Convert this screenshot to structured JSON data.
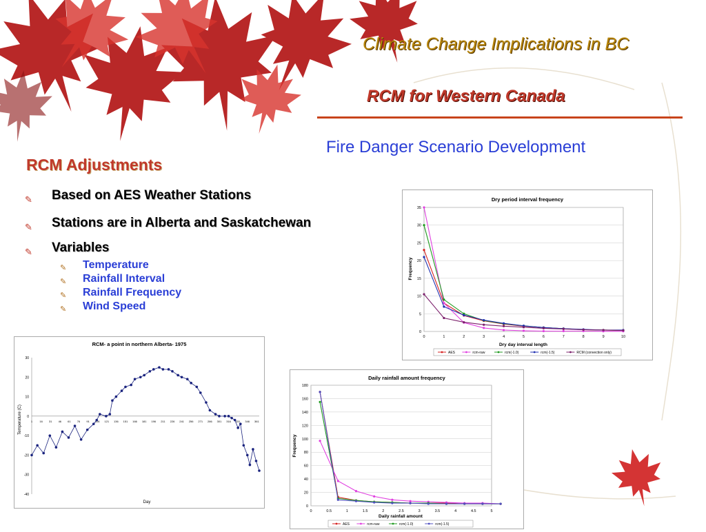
{
  "header": {
    "title": "Climate Change Implications in BC",
    "subtitle": "RCM for Western Canada",
    "section": "Fire Danger Scenario Development"
  },
  "content": {
    "heading": "RCM Adjustments",
    "bullets": [
      "Based on AES Weather Stations",
      "Stations are in Alberta and Saskatchewan",
      "Variables"
    ],
    "sub_bullets": [
      "Temperature",
      "Rainfall Interval",
      "Rainfall Frequency",
      "Wind Speed"
    ],
    "bullet_icon": "pen-bullet-icon"
  },
  "charts": {
    "temp": {
      "title": "RCM- a point in northern Alberta- 1975",
      "xlabel": "Day",
      "ylabel": "Temperature (C)",
      "yticks": [
        "30",
        "20",
        "10",
        "0",
        "-10",
        "-20",
        "-30",
        "-40"
      ],
      "xticks": [
        "1",
        "16",
        "31",
        "46",
        "61",
        "76",
        "91",
        "106",
        "121",
        "136",
        "151",
        "166",
        "181",
        "196",
        "211",
        "226",
        "241",
        "256",
        "271",
        "286",
        "301",
        "316",
        "331",
        "346",
        "361"
      ]
    },
    "dry": {
      "title": "Dry period interval frequency",
      "xlabel": "Dry day interval length",
      "ylabel": "Frequency",
      "yticks": [
        "35",
        "30",
        "25",
        "20",
        "15",
        "10",
        "5",
        "0"
      ],
      "xticks": [
        "0",
        "1",
        "2",
        "3",
        "4",
        "5",
        "6",
        "7",
        "8",
        "9",
        "10"
      ],
      "legend": [
        "AES",
        "rcm-raw",
        "rcm(-1.0)",
        "rcm(-1.5)",
        "RCM (convection only)"
      ]
    },
    "rain": {
      "title": "Daily rainfall amount frequency",
      "xlabel": "Daily rainfall amount",
      "ylabel": "Frequency",
      "yticks": [
        "180",
        "160",
        "140",
        "120",
        "100",
        "80",
        "60",
        "40",
        "20",
        "0"
      ],
      "xticks": [
        "0",
        "0.5",
        "1",
        "1.5",
        "2",
        "2.5",
        "3",
        "3.5",
        "4",
        "4.5",
        "5"
      ],
      "legend": [
        "AES",
        "rcm-raw",
        "rcm(-1.0)",
        "rcm(-1.5)"
      ]
    }
  },
  "chart_data": [
    {
      "type": "scatter",
      "title": "RCM- a point in northern Alberta- 1975",
      "xlabel": "Day",
      "ylabel": "Temperature (C)",
      "xlim": [
        1,
        365
      ],
      "ylim": [
        -40,
        30
      ],
      "grid": false,
      "series": [
        {
          "values": [
            [
              1,
              -20
            ],
            [
              10,
              -15
            ],
            [
              20,
              -19
            ],
            [
              30,
              -10
            ],
            [
              40,
              -16
            ],
            [
              50,
              -8
            ],
            [
              60,
              -11
            ],
            [
              70,
              -5
            ],
            [
              80,
              -12
            ],
            [
              90,
              -7
            ],
            [
              100,
              -4
            ],
            [
              105,
              -2
            ],
            [
              110,
              1
            ],
            [
              120,
              0
            ],
            [
              126,
              1
            ],
            [
              130,
              8
            ],
            [
              136,
              10
            ],
            [
              145,
              13
            ],
            [
              151,
              15
            ],
            [
              160,
              16
            ],
            [
              166,
              19
            ],
            [
              175,
              20
            ],
            [
              181,
              21
            ],
            [
              190,
              23
            ],
            [
              196,
              24
            ],
            [
              205,
              25
            ],
            [
              211,
              24
            ],
            [
              220,
              24
            ],
            [
              226,
              23
            ],
            [
              235,
              21
            ],
            [
              241,
              20
            ],
            [
              250,
              19
            ],
            [
              256,
              17
            ],
            [
              265,
              15
            ],
            [
              271,
              12
            ],
            [
              280,
              7
            ],
            [
              286,
              3
            ],
            [
              295,
              1
            ],
            [
              301,
              0
            ],
            [
              310,
              0
            ],
            [
              316,
              0
            ],
            [
              321,
              -1
            ],
            [
              326,
              -2
            ],
            [
              331,
              -6
            ],
            [
              335,
              -4
            ],
            [
              340,
              -15
            ],
            [
              346,
              -20
            ],
            [
              350,
              -25
            ],
            [
              355,
              -17
            ],
            [
              360,
              -23
            ],
            [
              365,
              -28
            ]
          ]
        }
      ]
    },
    {
      "type": "line",
      "title": "Dry period interval frequency",
      "xlabel": "Dry day interval length",
      "ylabel": "Frequency",
      "ylim": [
        0,
        35
      ],
      "legend": "bottom",
      "x": [
        0,
        1,
        2,
        3,
        4,
        5,
        6,
        7,
        8,
        9,
        10
      ],
      "series": [
        {
          "name": "AES",
          "color": "#d62020",
          "values": [
            23,
            8,
            4.5,
            3,
            2.1,
            1.5,
            1.1,
            0.8,
            0.5,
            0.4,
            0.3
          ]
        },
        {
          "name": "rcm-raw",
          "color": "#e040e0",
          "values": [
            35,
            8,
            2.5,
            1,
            0.4,
            0.2,
            0.1,
            0.1,
            0.1,
            0.05,
            0.05
          ]
        },
        {
          "name": "rcm(-1.0)",
          "color": "#1f9a1f",
          "values": [
            30,
            9,
            5,
            3.1,
            2.2,
            1.6,
            1.1,
            0.8,
            0.5,
            0.4,
            0.3
          ]
        },
        {
          "name": "rcm(-1.5)",
          "color": "#1f2fb0",
          "values": [
            21,
            7,
            4.6,
            3.2,
            2.3,
            1.6,
            1.1,
            0.8,
            0.6,
            0.4,
            0.4
          ]
        },
        {
          "name": "RCM (convection only)",
          "color": "#7b1f6b",
          "values": [
            10.5,
            3.8,
            2.6,
            1.9,
            1.5,
            1.2,
            0.9,
            0.7,
            0.5,
            0.4,
            0.3
          ]
        }
      ]
    },
    {
      "type": "line",
      "title": "Daily rainfall amount frequency",
      "xlabel": "Daily rainfall amount",
      "ylabel": "Frequency",
      "ylim": [
        0,
        180
      ],
      "legend": "bottom",
      "x": [
        0.25,
        0.75,
        1.25,
        1.75,
        2.25,
        2.75,
        3.25,
        3.75,
        4.25,
        4.75,
        5.25
      ],
      "series": [
        {
          "name": "AES",
          "color": "#d62020",
          "values": [
            170,
            13,
            8,
            6,
            5,
            4,
            4,
            4,
            3,
            3,
            3
          ]
        },
        {
          "name": "rcm-raw",
          "color": "#e040e0",
          "values": [
            97,
            37,
            22,
            14,
            9,
            7,
            6,
            5,
            4,
            4,
            3
          ]
        },
        {
          "name": "rcm(-1.0)",
          "color": "#1f9a1f",
          "values": [
            155,
            11,
            8,
            6,
            5,
            4,
            4,
            3,
            3,
            3,
            3
          ]
        },
        {
          "name": "rcm(-1.5)",
          "color": "#5050c0",
          "values": [
            170,
            9,
            7,
            5,
            4,
            4,
            3,
            3,
            3,
            3,
            3
          ]
        }
      ]
    }
  ]
}
